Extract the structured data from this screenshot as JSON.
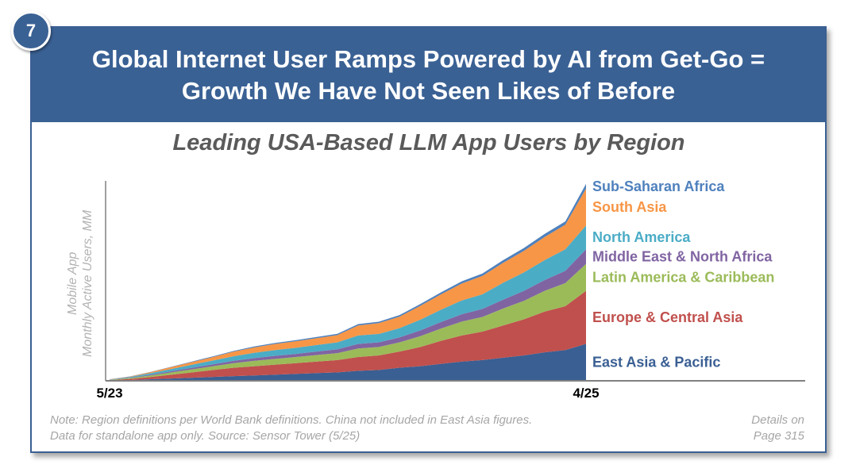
{
  "page_number": "7",
  "header": {
    "title_line1": "Global Internet User Ramps Powered by AI from Get-Go =",
    "title_line2": "Growth We Have Not Seen Likes of Before"
  },
  "chart_data": {
    "type": "area",
    "stacked": true,
    "title": "Leading USA-Based LLM App Users by Region",
    "ylabel_line1": "Mobile App",
    "ylabel_line2": "Monthly Active Users, MM",
    "x_labels": {
      "start": "5/23",
      "end": "4/25"
    },
    "x": [
      "5/23",
      "6/23",
      "7/23",
      "8/23",
      "9/23",
      "10/23",
      "11/23",
      "12/23",
      "1/24",
      "2/24",
      "3/24",
      "4/24",
      "5/24",
      "6/24",
      "7/24",
      "8/24",
      "9/24",
      "10/24",
      "11/24",
      "12/24",
      "1/25",
      "2/25",
      "3/25",
      "4/25"
    ],
    "series": [
      {
        "name": "East Asia & Pacific",
        "color": "#3a5f93",
        "values": [
          0.3,
          1,
          2,
          3,
          4,
          5,
          6,
          7,
          8,
          9,
          10,
          11,
          13,
          14,
          17,
          19,
          22,
          25,
          27,
          30,
          33,
          37,
          40,
          48
        ]
      },
      {
        "name": "Europe & Central Asia",
        "color": "#c0504d",
        "values": [
          0.5,
          1.5,
          3,
          5,
          7,
          9,
          11,
          12,
          13,
          14,
          15,
          16,
          18,
          19,
          21,
          25,
          30,
          34,
          37,
          42,
          47,
          53,
          57,
          69
        ]
      },
      {
        "name": "Latin America & Caribbean",
        "color": "#9bbb59",
        "values": [
          0.4,
          1,
          2,
          3,
          4,
          5,
          6,
          7,
          7.5,
          8,
          8.5,
          9,
          11,
          11,
          12,
          14,
          16,
          18,
          19,
          22,
          24,
          27,
          30,
          35
        ]
      },
      {
        "name": "Middle East & North Africa",
        "color": "#8064a2",
        "values": [
          0.2,
          0.5,
          1,
          1.5,
          2,
          2.5,
          3,
          3.5,
          4,
          4,
          4.5,
          5,
          6,
          6,
          6.5,
          7.5,
          8.5,
          9.5,
          10.5,
          11.5,
          13,
          14,
          16,
          19
        ]
      },
      {
        "name": "North America",
        "color": "#4bacc6",
        "values": [
          0.3,
          1,
          2,
          3,
          4,
          5,
          6,
          7,
          7.5,
          8,
          8.5,
          9,
          11,
          11,
          12,
          14,
          16,
          18,
          19,
          22,
          24,
          26,
          28,
          31
        ]
      },
      {
        "name": "South Asia",
        "color": "#f79646",
        "values": [
          0.2,
          0.6,
          1.5,
          2.5,
          3.5,
          4.5,
          6,
          7,
          8,
          8.5,
          9,
          9.5,
          13,
          14,
          15,
          18,
          20,
          22,
          24,
          26,
          28,
          30,
          32,
          48
        ]
      },
      {
        "name": "Sub-Saharan Africa",
        "color": "#4f81bd",
        "values": [
          0.1,
          0.2,
          0.3,
          0.5,
          0.7,
          0.9,
          1,
          1.2,
          1.3,
          1.4,
          1.5,
          1.6,
          1.8,
          1.9,
          2,
          2.3,
          2.6,
          2.9,
          3.1,
          3.4,
          3.7,
          4,
          4.3,
          6
        ]
      }
    ],
    "ylim": [
      0,
      260
    ],
    "legend_placement": "right, aligned to series ends"
  },
  "notes": {
    "line1": "Note: Region definitions per World Bank definitions. China not included in East Asia figures.",
    "line2": "Data for standalone app only. Source: Sensor Tower (5/25)"
  },
  "page_ref": {
    "line1": "Details on",
    "line2": "Page 315"
  }
}
